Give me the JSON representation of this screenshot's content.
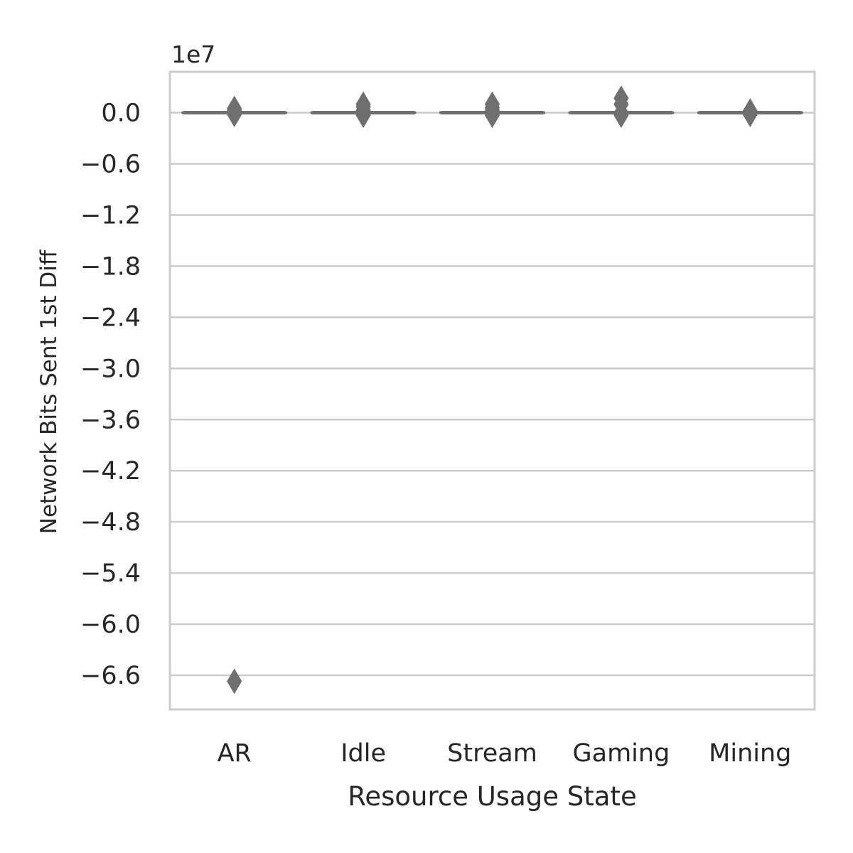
{
  "chart_data": {
    "type": "box",
    "categories": [
      "AR",
      "Idle",
      "Stream",
      "Gaming",
      "Mining"
    ],
    "xlabel": "Resource Usage State",
    "ylabel": "Network Bits Sent 1st Diff",
    "y_offset_label": "1e7",
    "y_scale": 10000000,
    "ylim": [
      -7.0,
      0.48
    ],
    "yticks": [
      0.0,
      -0.6,
      -1.2,
      -1.8,
      -2.4,
      -3.0,
      -3.6,
      -4.2,
      -4.8,
      -5.4,
      -6.0,
      -6.6
    ],
    "ytick_labels": [
      "0.0",
      "−0.6",
      "−1.2",
      "−1.8",
      "−2.4",
      "−3.0",
      "−3.6",
      "−4.2",
      "−4.8",
      "−5.4",
      "−6.0",
      "−6.6"
    ],
    "grid": true,
    "colors": {
      "box": "#6f6f6f",
      "grid": "#cccccc",
      "text": "#262626"
    },
    "series": [
      {
        "category": "AR",
        "q1": 0.0,
        "median": 0.0,
        "q3": 0.0,
        "whisker_low": 0.0,
        "whisker_high": 0.0,
        "outliers": [
          -0.02,
          0.0,
          0.03,
          0.05,
          -6.67
        ]
      },
      {
        "category": "Idle",
        "q1": 0.0,
        "median": 0.0,
        "q3": 0.0,
        "whisker_low": 0.0,
        "whisker_high": 0.0,
        "outliers": [
          -0.03,
          0.0,
          0.03,
          0.07,
          0.1
        ]
      },
      {
        "category": "Stream",
        "q1": 0.0,
        "median": 0.0,
        "q3": 0.0,
        "whisker_low": 0.0,
        "whisker_high": 0.0,
        "outliers": [
          -0.03,
          0.0,
          0.03,
          0.06,
          0.1
        ]
      },
      {
        "category": "Gaming",
        "q1": 0.0,
        "median": 0.0,
        "q3": 0.0,
        "whisker_low": 0.0,
        "whisker_high": 0.0,
        "outliers": [
          -0.03,
          0.0,
          0.1,
          0.17
        ]
      },
      {
        "category": "Mining",
        "q1": 0.0,
        "median": 0.0,
        "q3": 0.0,
        "whisker_low": 0.0,
        "whisker_high": 0.0,
        "outliers": [
          -0.02,
          0.0,
          0.02
        ]
      }
    ]
  }
}
